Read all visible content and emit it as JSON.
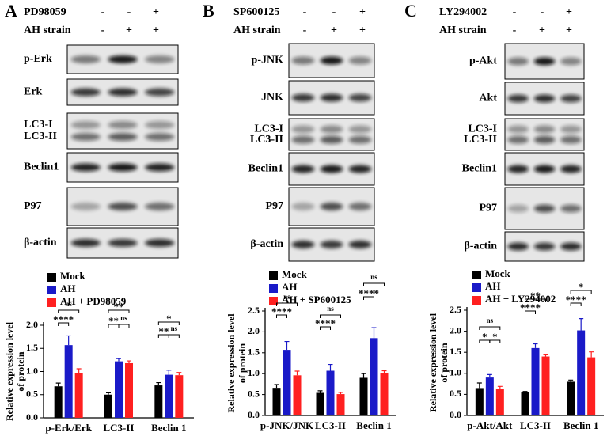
{
  "panels": [
    {
      "letter": "A",
      "treatment": "PD98059",
      "treatment_signs": [
        "-",
        "-",
        "+"
      ],
      "strain": "AH strain",
      "strain_signs": [
        "-",
        "+",
        "+"
      ],
      "rows": [
        [
          "p-Erk"
        ],
        [
          "Erk"
        ],
        [
          "LC3-I",
          "LC3-II"
        ],
        [
          "Beclin1"
        ],
        [
          "P97"
        ],
        [
          "β-actin"
        ]
      ]
    },
    {
      "letter": "B",
      "treatment": "SP600125",
      "treatment_signs": [
        "-",
        "-",
        "+"
      ],
      "strain": "AH strain",
      "strain_signs": [
        "-",
        "+",
        "+"
      ],
      "rows": [
        [
          "p-JNK"
        ],
        [
          "JNK"
        ],
        [
          "LC3-I",
          "LC3-II"
        ],
        [
          "Beclin1"
        ],
        [
          "P97"
        ],
        [
          "β-actin"
        ]
      ]
    },
    {
      "letter": "C",
      "treatment": "LY294002",
      "treatment_signs": [
        "-",
        "-",
        "+"
      ],
      "strain": "AH strain",
      "strain_signs": [
        "-",
        "+",
        "+"
      ],
      "rows": [
        [
          "p-Akt"
        ],
        [
          "Akt"
        ],
        [
          "LC3-I",
          "LC3-II"
        ],
        [
          "Beclin1"
        ],
        [
          "P97"
        ],
        [
          "β-actin"
        ]
      ]
    }
  ],
  "chart_data": [
    {
      "type": "bar",
      "ylabel": [
        "Relative expression level",
        "of protein"
      ],
      "categories": [
        "p-Erk/Erk",
        "LC3-II",
        "Beclin 1"
      ],
      "series": [
        {
          "name": "Mock",
          "color": "#000000",
          "values": [
            0.68,
            0.5,
            0.7
          ],
          "errors": [
            0.07,
            0.04,
            0.06
          ]
        },
        {
          "name": "AH",
          "color": "#1a1ac8",
          "values": [
            1.57,
            1.22,
            0.93
          ],
          "errors": [
            0.2,
            0.06,
            0.1
          ]
        },
        {
          "name": "AH + PD98059",
          "color": "#ff2020",
          "values": [
            0.96,
            1.18,
            0.92
          ],
          "errors": [
            0.1,
            0.05,
            0.06
          ]
        }
      ],
      "ylim": [
        0,
        2
      ],
      "yticks": [
        {
          "value": 0,
          "label": "0.0"
        },
        0.5,
        {
          "value": 1,
          "label": "1.0"
        },
        1.5,
        {
          "value": 2,
          "label": "2.0"
        }
      ],
      "annotations": [
        "ns",
        "****",
        "**",
        "**",
        "ns",
        "*",
        "**",
        "ns"
      ]
    },
    {
      "type": "bar",
      "ylabel": [
        "Relative expression level",
        "of protein"
      ],
      "categories": [
        "p-JNK/JNK",
        "LC3-II",
        "Beclin 1"
      ],
      "series": [
        {
          "name": "Mock",
          "color": "#000000",
          "values": [
            0.66,
            0.54,
            0.9
          ],
          "errors": [
            0.08,
            0.05,
            0.1
          ]
        },
        {
          "name": "AH",
          "color": "#1a1ac8",
          "values": [
            1.57,
            1.07,
            1.85
          ],
          "errors": [
            0.2,
            0.15,
            0.25
          ]
        },
        {
          "name": "AH + SP600125",
          "color": "#ff2020",
          "values": [
            0.96,
            0.51,
            1.02
          ],
          "errors": [
            0.1,
            0.04,
            0.05
          ]
        }
      ],
      "ylim": [
        0,
        2.5
      ],
      "yticks": [
        {
          "value": 0,
          "label": "0.0"
        },
        0.5,
        {
          "value": 1,
          "label": "1.0"
        },
        1.5,
        {
          "value": 2,
          "label": "2.0"
        },
        2.5
      ],
      "annotations": [
        "ns",
        "****",
        "ns",
        "****",
        "ns",
        "****"
      ]
    },
    {
      "type": "bar",
      "ylabel": [
        "Relative expression level",
        "of protein"
      ],
      "categories": [
        "p-Akt/Akt",
        "LC3-II",
        "Beclin 1"
      ],
      "series": [
        {
          "name": "Mock",
          "color": "#000000",
          "values": [
            0.65,
            0.55,
            0.8
          ],
          "errors": [
            0.12,
            0.02,
            0.04
          ]
        },
        {
          "name": "AH",
          "color": "#1a1ac8",
          "values": [
            0.9,
            1.6,
            2.02
          ],
          "errors": [
            0.07,
            0.1,
            0.28
          ]
        },
        {
          "name": "AH + LY294002",
          "color": "#ff2020",
          "values": [
            0.63,
            1.4,
            1.38
          ],
          "errors": [
            0.06,
            0.04,
            0.13
          ]
        }
      ],
      "ylim": [
        0,
        2.5
      ],
      "yticks": [
        {
          "value": 0,
          "label": "0.0"
        },
        0.5,
        {
          "value": 1,
          "label": "1.0"
        },
        1.5,
        {
          "value": 2,
          "label": "2.0"
        },
        2.5
      ],
      "annotations": [
        "ns",
        "*",
        "*",
        "**",
        "****",
        "*",
        "****"
      ]
    }
  ]
}
